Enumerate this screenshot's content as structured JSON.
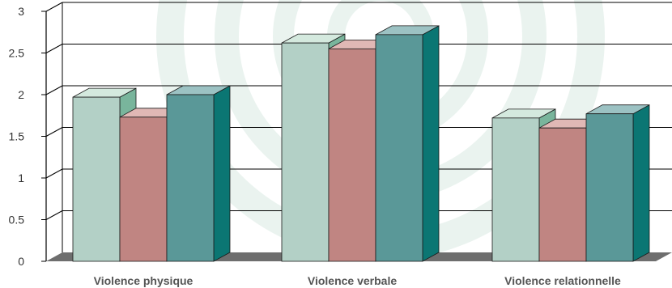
{
  "chart_data": {
    "type": "bar",
    "categories": [
      "Violence physique",
      "Violence verbale",
      "Violence relationnelle"
    ],
    "series": [
      {
        "values": [
          1.97,
          2.62,
          1.72
        ]
      },
      {
        "values": [
          1.73,
          2.55,
          1.6
        ]
      },
      {
        "values": [
          2.0,
          2.72,
          1.77
        ]
      }
    ],
    "y_ticks": [
      "0",
      "0.5",
      "1",
      "1.5",
      "2",
      "2.5",
      "3"
    ],
    "ylim": [
      0,
      3
    ],
    "grid": true,
    "legend": "none",
    "style": "3d",
    "colors": {
      "series_front": [
        "#b3d0c6",
        "#c08582",
        "#5a9898"
      ],
      "series_side": [
        "#79b59c",
        "#a85e5a",
        "#0b7673"
      ],
      "series_top": [
        "#d4e9de",
        "#e0b8b5",
        "#9cc2c3"
      ],
      "floor": "#6e6e6e",
      "background_watermark": "#e3efea"
    }
  }
}
